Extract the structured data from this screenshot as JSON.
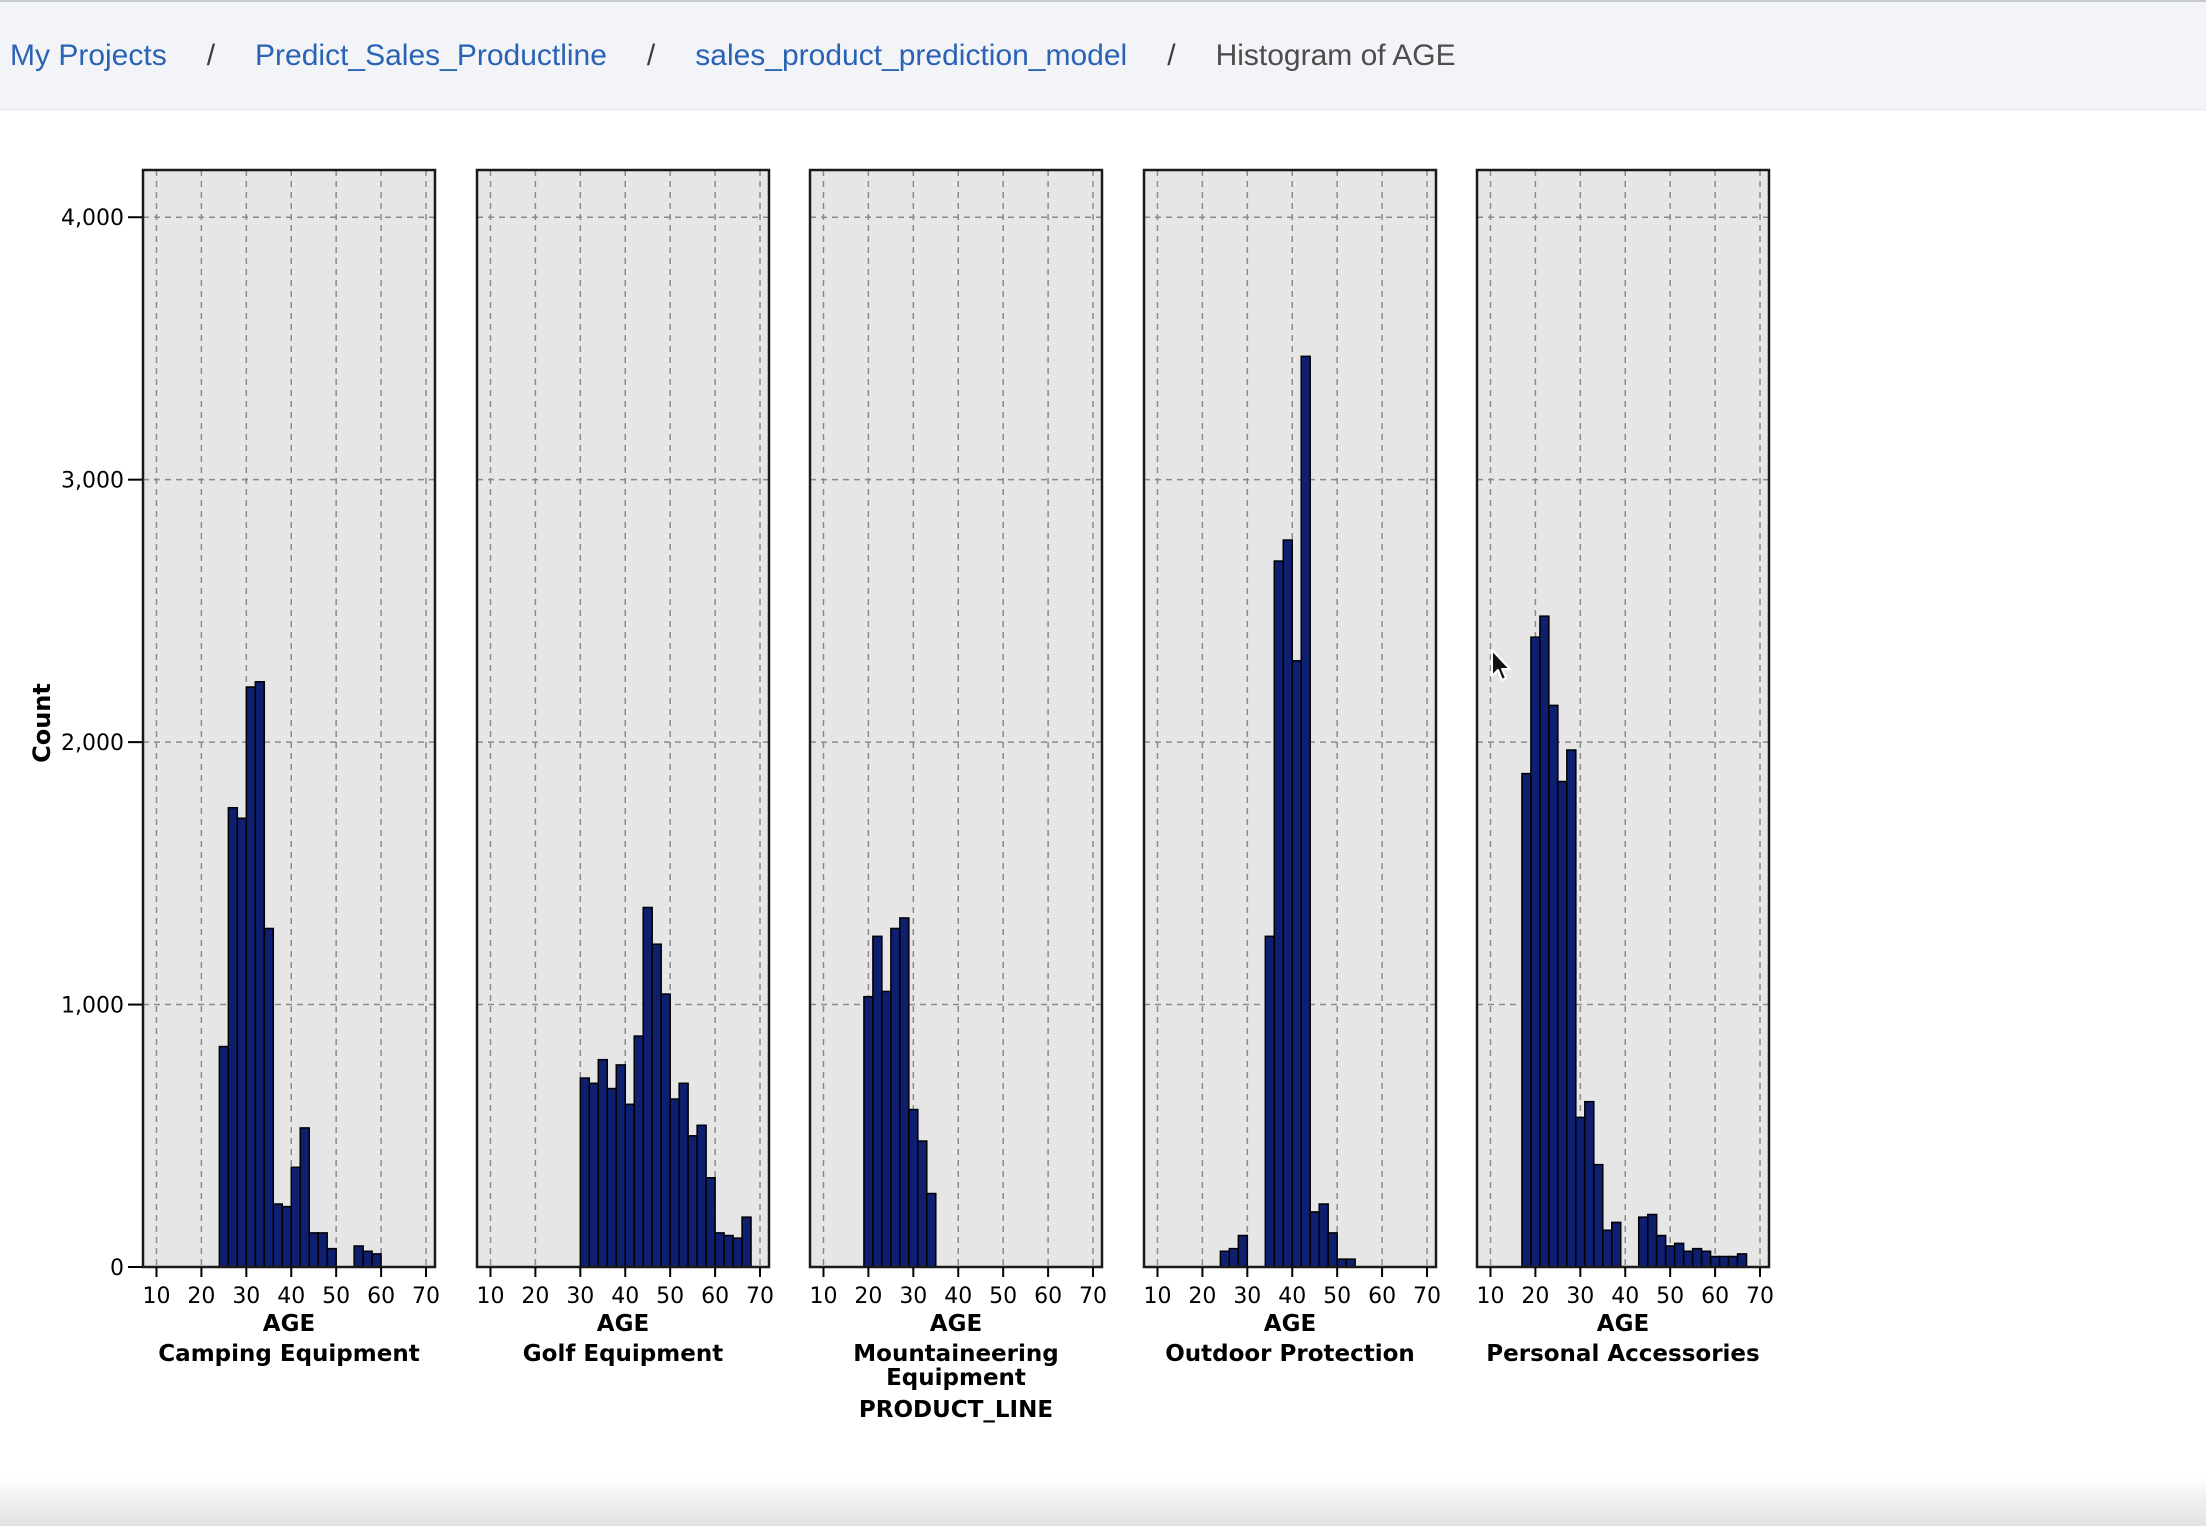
{
  "breadcrumb": {
    "items": [
      "My Projects",
      "Predict_Sales_Productline",
      "sales_product_prediction_model"
    ],
    "current": "Histogram of AGE",
    "separator": "/"
  },
  "chart_data": {
    "type": "bar",
    "chart_kind": "faceted-histogram",
    "ylabel": "Count",
    "facet_label": "PRODUCT_LINE",
    "xlabel": "AGE",
    "xlim": [
      7,
      72
    ],
    "ylim": [
      0,
      4180
    ],
    "xticks": [
      10,
      20,
      30,
      40,
      50,
      60,
      70
    ],
    "yticks": [
      0,
      1000,
      2000,
      3000,
      4000
    ],
    "ytick_labels": [
      "0",
      "1,000",
      "2,000",
      "3,000",
      "4,000"
    ],
    "bin_width": 2,
    "grid": true,
    "bar_color": "#0d1f6e",
    "panel_bg": "#e6e6e6",
    "facets": [
      {
        "name": "Camping Equipment",
        "title_lines": [
          "Camping Equipment"
        ],
        "bins": [
          [
            24,
            840
          ],
          [
            26,
            1750
          ],
          [
            28,
            1710
          ],
          [
            30,
            2210
          ],
          [
            32,
            2230
          ],
          [
            34,
            1290
          ],
          [
            36,
            240
          ],
          [
            38,
            230
          ],
          [
            40,
            380
          ],
          [
            42,
            530
          ],
          [
            44,
            130
          ],
          [
            46,
            130
          ],
          [
            48,
            70
          ],
          [
            54,
            80
          ],
          [
            56,
            60
          ],
          [
            58,
            50
          ]
        ]
      },
      {
        "name": "Golf Equipment",
        "title_lines": [
          "Golf Equipment"
        ],
        "bins": [
          [
            30,
            720
          ],
          [
            32,
            700
          ],
          [
            34,
            790
          ],
          [
            36,
            680
          ],
          [
            38,
            770
          ],
          [
            40,
            620
          ],
          [
            42,
            880
          ],
          [
            44,
            1370
          ],
          [
            46,
            1230
          ],
          [
            48,
            1040
          ],
          [
            50,
            640
          ],
          [
            52,
            700
          ],
          [
            54,
            500
          ],
          [
            56,
            540
          ],
          [
            58,
            340
          ],
          [
            60,
            130
          ],
          [
            62,
            120
          ],
          [
            64,
            110
          ],
          [
            66,
            190
          ]
        ]
      },
      {
        "name": "Mountaineering Equipment",
        "title_lines": [
          "Mountaineering",
          "Equipment"
        ],
        "bins": [
          [
            19,
            1030
          ],
          [
            21,
            1260
          ],
          [
            23,
            1050
          ],
          [
            25,
            1290
          ],
          [
            27,
            1330
          ],
          [
            29,
            600
          ],
          [
            31,
            480
          ],
          [
            33,
            280
          ]
        ]
      },
      {
        "name": "Outdoor Protection",
        "title_lines": [
          "Outdoor Protection"
        ],
        "bins": [
          [
            24,
            60
          ],
          [
            26,
            70
          ],
          [
            28,
            120
          ],
          [
            34,
            1260
          ],
          [
            36,
            2690
          ],
          [
            38,
            2770
          ],
          [
            40,
            2310
          ],
          [
            42,
            3470
          ],
          [
            44,
            210
          ],
          [
            46,
            240
          ],
          [
            48,
            130
          ],
          [
            50,
            30
          ],
          [
            52,
            30
          ]
        ]
      },
      {
        "name": "Personal Accessories",
        "title_lines": [
          "Personal Accessories"
        ],
        "bins": [
          [
            17,
            1880
          ],
          [
            19,
            2400
          ],
          [
            21,
            2480
          ],
          [
            23,
            2140
          ],
          [
            25,
            1850
          ],
          [
            27,
            1970
          ],
          [
            29,
            570
          ],
          [
            31,
            630
          ],
          [
            33,
            390
          ],
          [
            35,
            140
          ],
          [
            37,
            170
          ],
          [
            41,
            0
          ],
          [
            43,
            190
          ],
          [
            45,
            200
          ],
          [
            47,
            120
          ],
          [
            49,
            80
          ],
          [
            51,
            90
          ],
          [
            53,
            60
          ],
          [
            55,
            70
          ],
          [
            57,
            60
          ],
          [
            59,
            40
          ],
          [
            61,
            40
          ],
          [
            63,
            40
          ],
          [
            65,
            50
          ]
        ]
      }
    ]
  }
}
